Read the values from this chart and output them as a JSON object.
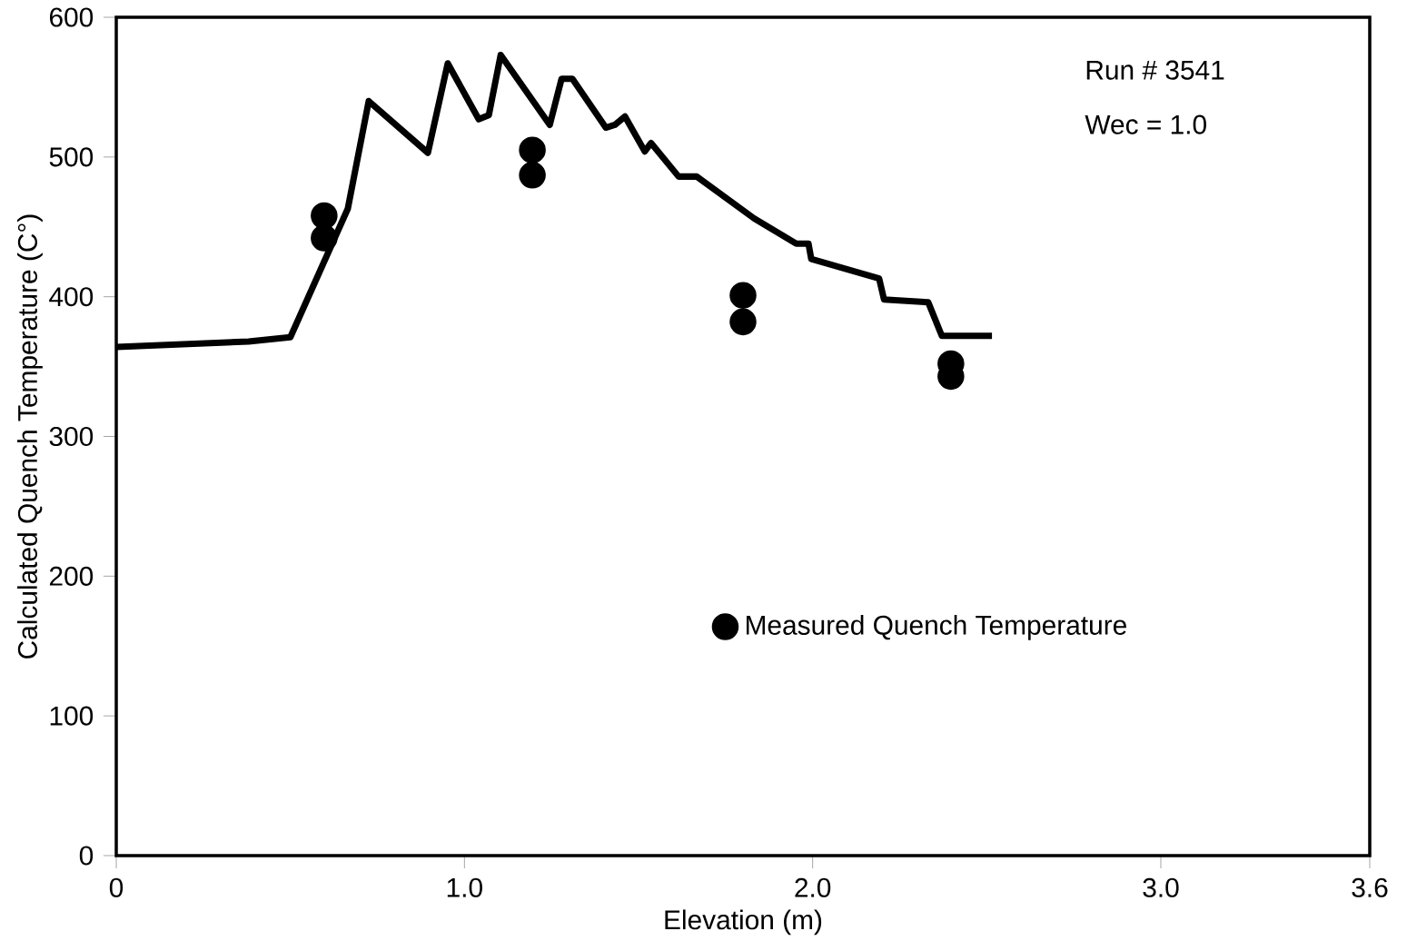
{
  "chart_data": {
    "type": "line",
    "xlabel": "Elevation (m)",
    "ylabel": "Calculated Quench Temperature (C°)",
    "xlim": [
      0,
      3.6
    ],
    "ylim": [
      0,
      600
    ],
    "xticks": [
      0,
      {
        "value": 1,
        "label": "1.0"
      },
      {
        "value": 2,
        "label": "2.0"
      },
      {
        "value": 3,
        "label": "3.0"
      },
      3.6
    ],
    "yticks": [
      0,
      100,
      200,
      300,
      400,
      500,
      600
    ],
    "legend": "right",
    "annotations": [
      "Run # 3541",
      "Wec = 1.0"
    ],
    "series": [
      {
        "color": "#000000",
        "marker": "none",
        "line_style": "solid",
        "x": [
          0,
          0.38,
          0.5,
          0.665,
          0.725,
          0.895,
          0.952,
          1.041,
          1.07,
          1.104,
          1.245,
          1.279,
          1.31,
          1.406,
          1.432,
          1.461,
          1.518,
          1.536,
          1.615,
          1.667,
          1.832,
          1.953,
          1.988,
          1.996,
          2.191,
          2.205,
          2.332,
          2.371,
          2.515
        ],
        "values": [
          364,
          368,
          371,
          463,
          540,
          503,
          567,
          527,
          530,
          573,
          523,
          556,
          556,
          521,
          523,
          529,
          504,
          510,
          486,
          486,
          456,
          438,
          438,
          427,
          413,
          398,
          396,
          372,
          372
        ]
      },
      {
        "type": "scatter",
        "name": "Measured Quench Temperature",
        "color": "#000000",
        "marker": "circle",
        "x": [
          0.597,
          0.597,
          1.195,
          1.195,
          1.8,
          1.8,
          2.397,
          2.397
        ],
        "values": [
          458,
          442,
          505,
          487,
          401,
          382,
          352,
          343
        ]
      }
    ]
  }
}
